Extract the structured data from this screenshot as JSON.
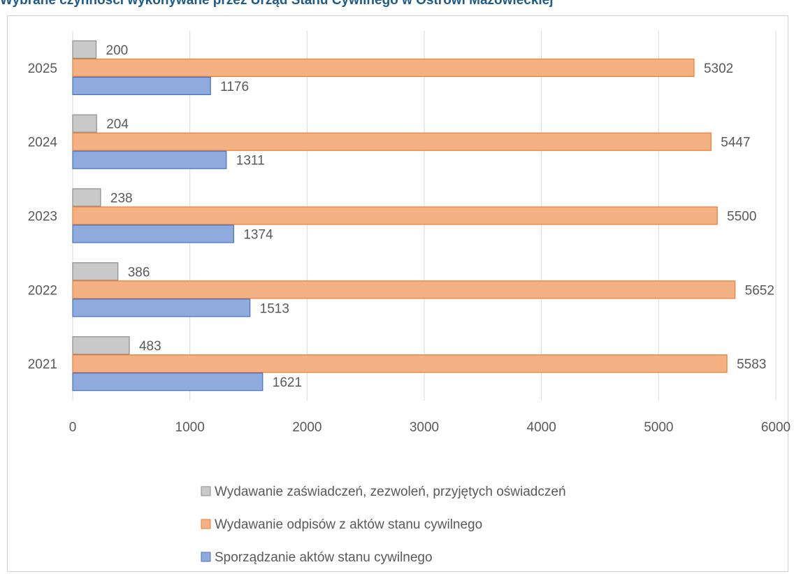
{
  "chart_data": {
    "type": "bar",
    "orientation": "horizontal",
    "title": "Wybrane czynności wykonywane przez Urząd Stanu Cywilnego w Ostrowi Mazowieckiej",
    "categories": [
      "2021",
      "2022",
      "2023",
      "2024",
      "2025"
    ],
    "series": [
      {
        "name": "Sporządzanie aktów stanu cywilnego",
        "color": "#8faadc",
        "stroke": "#4472c4",
        "values": [
          1621,
          1513,
          1374,
          1311,
          1176
        ]
      },
      {
        "name": "Wydawanie odpisów z aktów stanu cywilnego",
        "color": "#f4b183",
        "stroke": "#ed7d31",
        "values": [
          5583,
          5652,
          5500,
          5447,
          5302
        ]
      },
      {
        "name": "Wydawanie zaświadczeń, zezwoleń, przyjętych oświadczeń",
        "color": "#c9c9c9",
        "stroke": "#8c8c8c",
        "values": [
          483,
          386,
          238,
          204,
          200
        ]
      }
    ],
    "x_ticks": [
      "0",
      "1000",
      "2000",
      "3000",
      "4000",
      "5000",
      "6000"
    ],
    "xlim": [
      0,
      6000
    ],
    "grid": "vertical",
    "legend": "bottom",
    "data_labels": true
  }
}
